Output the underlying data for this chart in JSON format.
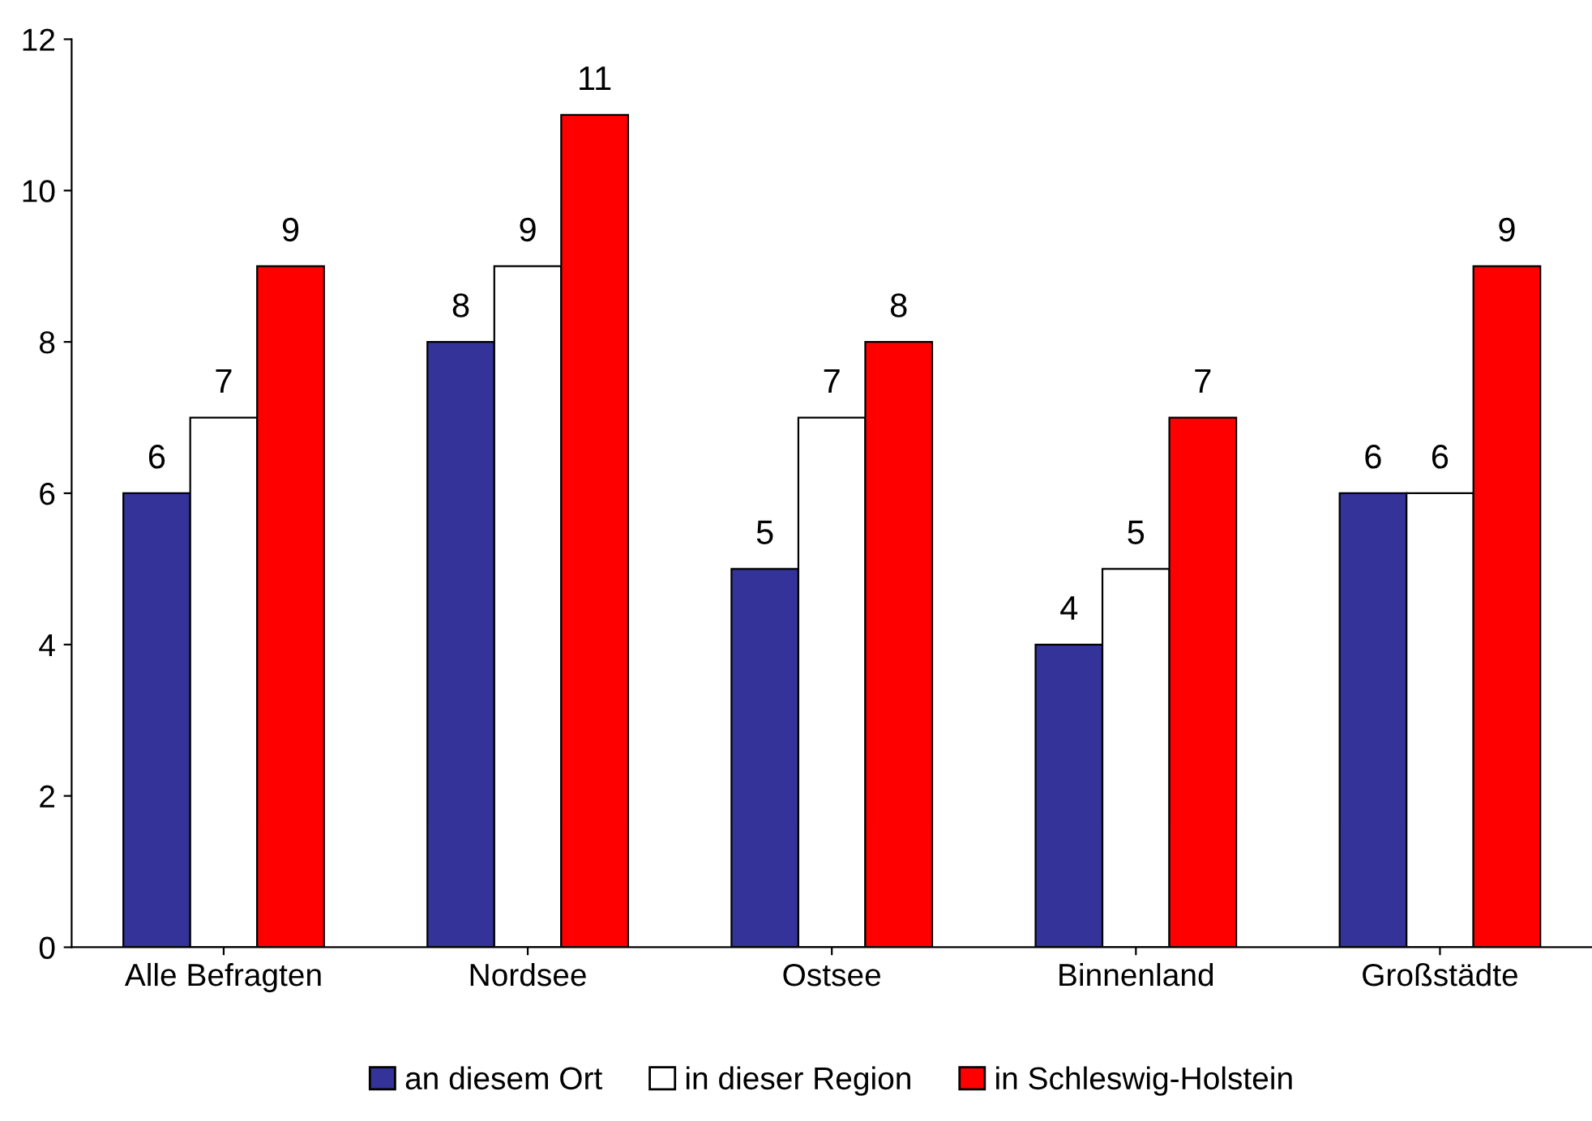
{
  "chart_data": {
    "type": "bar",
    "categories": [
      "Alle Befragten",
      "Nordsee",
      "Ostsee",
      "Binnenland",
      "Großstädte"
    ],
    "series": [
      {
        "name": "an diesem Ort",
        "color": "#333399",
        "values": [
          6,
          8,
          5,
          4,
          6
        ]
      },
      {
        "name": "in dieser Region",
        "color": "#ffffff",
        "values": [
          7,
          9,
          7,
          5,
          6
        ]
      },
      {
        "name": "in Schleswig-Holstein",
        "color": "#ff0000",
        "values": [
          9,
          11,
          8,
          7,
          9
        ]
      }
    ],
    "ylim": [
      0,
      12
    ],
    "yticks": [
      0,
      2,
      4,
      6,
      8,
      10,
      12
    ],
    "data_labels": true,
    "grid": false,
    "legend": "bottom"
  }
}
